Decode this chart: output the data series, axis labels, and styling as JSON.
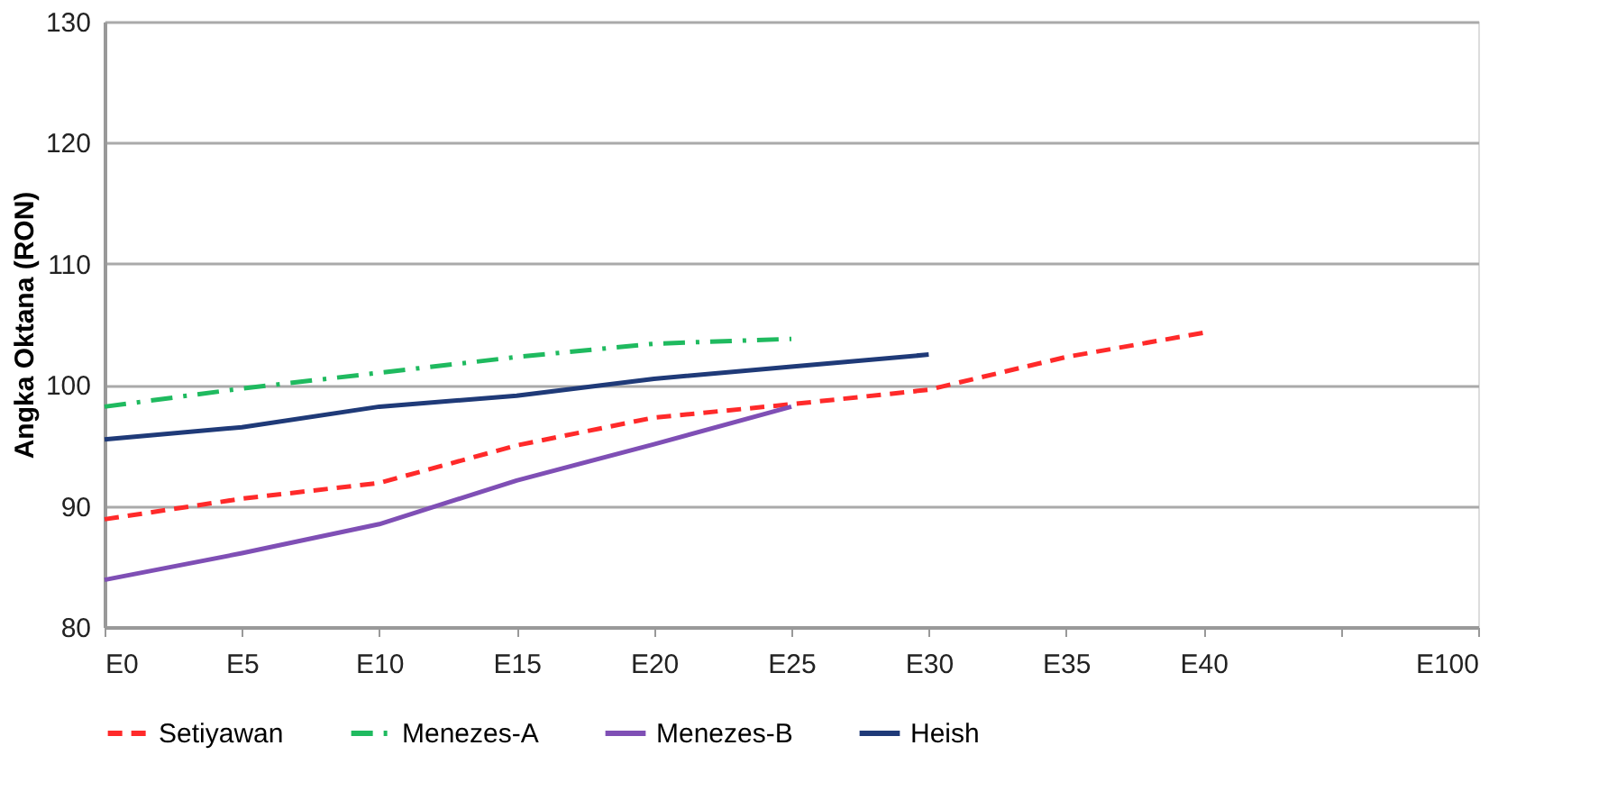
{
  "chart_data": {
    "type": "line",
    "ylabel": "Angka Oktana (RON)",
    "categories": [
      "E0",
      "E5",
      "E10",
      "E15",
      "E20",
      "E25",
      "E30",
      "E35",
      "E40",
      null,
      "E100"
    ],
    "ylim": [
      80,
      130
    ],
    "yticks": [
      80,
      90,
      100,
      110,
      120,
      130
    ],
    "grid": "y",
    "legend": "bottom",
    "marker": "none",
    "series": [
      {
        "name": "Setiyawan",
        "color": "#ff2a2a",
        "line_style": "dashed",
        "values": [
          88.9,
          90.6,
          91.9,
          95.0,
          97.3,
          98.4,
          99.6,
          102.3,
          104.3,
          null,
          null
        ]
      },
      {
        "name": "Menezes-A",
        "color": "#1fba5f",
        "line_style": "dashdot",
        "values": [
          98.2,
          99.7,
          101.0,
          102.3,
          103.4,
          103.8,
          null,
          null,
          null,
          null,
          null
        ]
      },
      {
        "name": "Menezes-B",
        "color": "#7f4fb5",
        "line_style": "solid",
        "values": [
          83.9,
          86.1,
          88.5,
          92.1,
          95.1,
          98.2,
          null,
          null,
          null,
          null,
          null
        ]
      },
      {
        "name": "Heish",
        "color": "#1f3a78",
        "line_style": "solid",
        "values": [
          95.5,
          96.5,
          98.2,
          99.1,
          100.5,
          101.5,
          102.5,
          null,
          null,
          null,
          null
        ]
      }
    ]
  }
}
